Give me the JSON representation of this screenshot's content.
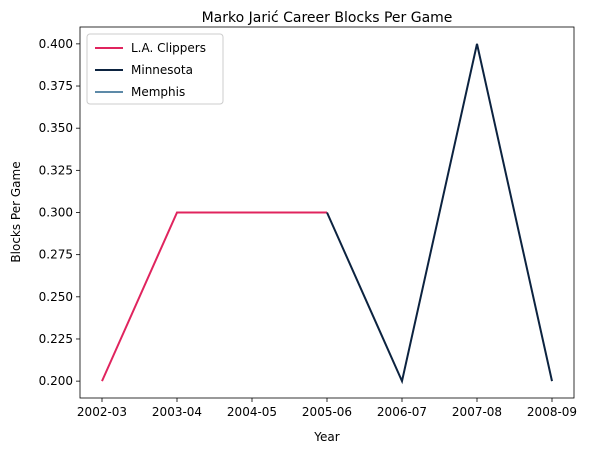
{
  "chart_data": {
    "type": "line",
    "title": "Marko Jarić Career Blocks Per Game",
    "xlabel": "Year",
    "ylabel": "Blocks Per Game",
    "x": [
      "2002-03",
      "2003-04",
      "2004-05",
      "2005-06",
      "2006-07",
      "2007-08",
      "2008-09"
    ],
    "ylim": [
      0.19,
      0.41
    ],
    "yticks": [
      "0.200",
      "0.225",
      "0.250",
      "0.275",
      "0.300",
      "0.325",
      "0.350",
      "0.375",
      "0.400"
    ],
    "grid": false,
    "legend_position": "top-left",
    "series": [
      {
        "name": "L.A. Clippers",
        "color": "#e0245e",
        "points": [
          [
            "2002-03",
            0.2
          ],
          [
            "2003-04",
            0.3
          ],
          [
            "2004-05",
            0.3
          ],
          [
            "2005-06",
            0.3
          ]
        ]
      },
      {
        "name": "Minnesota",
        "color": "#0c2340",
        "points": [
          [
            "2005-06",
            0.3
          ],
          [
            "2006-07",
            0.2
          ],
          [
            "2007-08",
            0.4
          ],
          [
            "2008-09",
            0.2
          ]
        ]
      },
      {
        "name": "Memphis",
        "color": "#5d8aa8",
        "points": []
      }
    ]
  }
}
